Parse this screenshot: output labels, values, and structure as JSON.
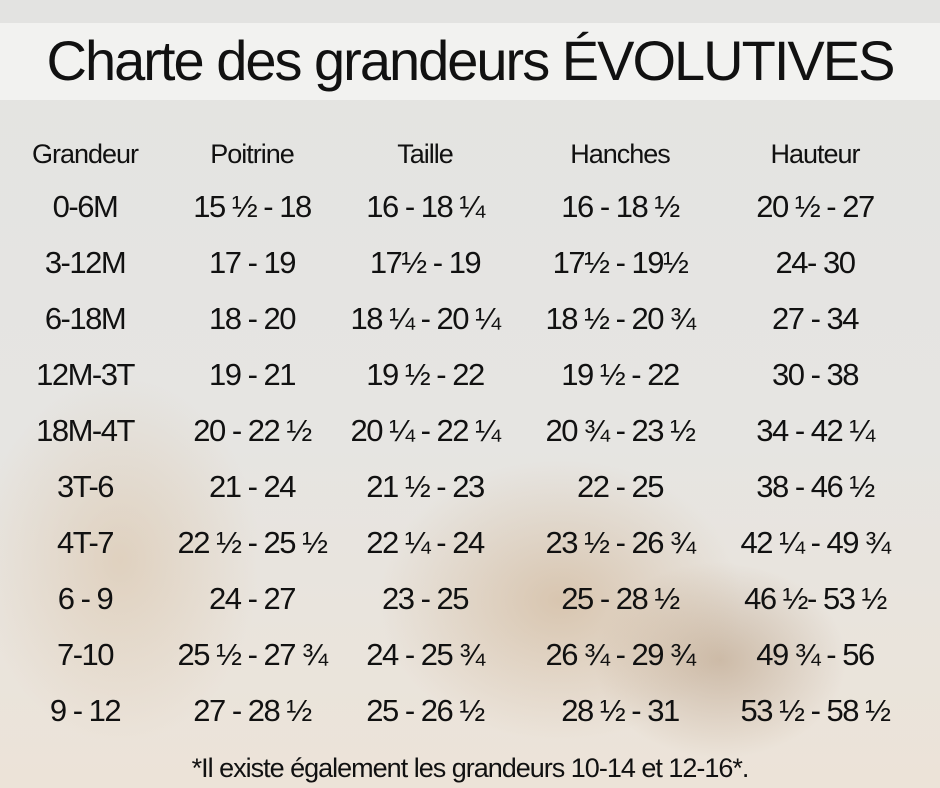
{
  "title": "Charte des grandeurs ÉVOLUTIVES",
  "table": {
    "headers": [
      "Grandeur",
      "Poitrine",
      "Taille",
      "Hanches",
      "Hauteur"
    ],
    "rows": [
      [
        "0-6M",
        "15 ½ - 18",
        "16 - 18 ¼",
        "16 - 18 ½",
        "20 ½ - 27"
      ],
      [
        "3-12M",
        "17 - 19",
        "17½ - 19",
        "17½ - 19½",
        "24- 30"
      ],
      [
        "6-18M",
        "18 - 20",
        "18 ¼ - 20 ¼",
        "18 ½ - 20 ¾",
        "27 - 34"
      ],
      [
        "12M-3T",
        "19 - 21",
        "19 ½ - 22",
        "19 ½ - 22",
        "30 - 38"
      ],
      [
        "18M-4T",
        "20 - 22 ½",
        "20 ¼ - 22 ¼",
        "20 ¾ - 23 ½",
        "34 - 42 ¼"
      ],
      [
        "3T-6",
        "21 - 24",
        "21 ½ - 23",
        "22 - 25",
        "38 - 46 ½"
      ],
      [
        "4T-7",
        "22 ½ - 25 ½",
        "22 ¼ - 24",
        "23 ½ - 26 ¾",
        "42 ¼ - 49 ¾"
      ],
      [
        "6 - 9",
        "24 - 27",
        "23 - 25",
        "25 - 28 ½",
        "46 ½- 53 ½"
      ],
      [
        "7-10",
        "25 ½ - 27 ¾",
        "24 - 25 ¾",
        "26 ¾ - 29 ¾",
        "49 ¾ - 56"
      ],
      [
        "9 - 12",
        "27 - 28 ½",
        "25 - 26 ½",
        "28 ½ - 31",
        "53 ½ - 58 ½"
      ]
    ]
  },
  "footnote": "*Il existe également les grandeurs 10-14 et 12-16*."
}
